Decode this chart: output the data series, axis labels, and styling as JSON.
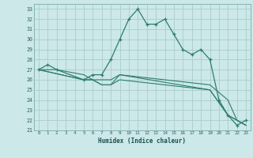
{
  "title": "",
  "xlabel": "Humidex (Indice chaleur)",
  "ylabel": "",
  "background_color": "#cce8e8",
  "grid_color": "#aacccc",
  "line_color": "#2e7d6e",
  "xlim": [
    -0.5,
    23.5
  ],
  "ylim": [
    21,
    33.5
  ],
  "xticks": [
    0,
    1,
    2,
    3,
    4,
    5,
    6,
    7,
    8,
    9,
    10,
    11,
    12,
    13,
    14,
    15,
    16,
    17,
    18,
    19,
    20,
    21,
    22,
    23
  ],
  "yticks": [
    21,
    22,
    23,
    24,
    25,
    26,
    27,
    28,
    29,
    30,
    31,
    32,
    33
  ],
  "lines": [
    {
      "x": [
        0,
        1,
        2,
        5,
        6,
        7,
        8,
        9,
        10,
        11,
        12,
        13,
        14,
        15,
        16,
        17,
        18,
        19,
        20,
        21,
        22,
        23
      ],
      "y": [
        27,
        27.5,
        27,
        26,
        26.5,
        26.5,
        28,
        30,
        32,
        33,
        31.5,
        31.5,
        32,
        30.5,
        29,
        28.5,
        29,
        28,
        24,
        22.5,
        21.5,
        22
      ],
      "marker": true
    },
    {
      "x": [
        0,
        2,
        5,
        6,
        7,
        8,
        9,
        19,
        21,
        22,
        23
      ],
      "y": [
        27,
        27,
        26.5,
        26,
        26,
        26,
        26.5,
        25,
        22.5,
        22,
        21.5
      ],
      "marker": false
    },
    {
      "x": [
        0,
        5,
        6,
        7,
        8,
        9,
        19,
        21,
        22,
        23
      ],
      "y": [
        27,
        26,
        26,
        25.5,
        25.5,
        26,
        25,
        22.5,
        22,
        21.5
      ],
      "marker": false
    },
    {
      "x": [
        0,
        5,
        6,
        7,
        8,
        9,
        19,
        21,
        22,
        23
      ],
      "y": [
        27,
        26,
        26,
        25.5,
        25.5,
        26.5,
        25.5,
        24,
        22,
        21.5
      ],
      "marker": false
    }
  ]
}
